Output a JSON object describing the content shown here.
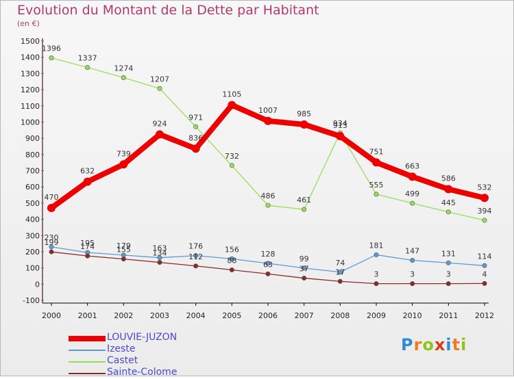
{
  "title": "Evolution du Montant de la Dette par Habitant",
  "subtitle": "(en €)",
  "brand": {
    "letters": [
      "P",
      "r",
      "o",
      "x",
      "i",
      "t",
      "i"
    ],
    "colors": [
      "#2e8bd6",
      "#f07c1c",
      "#8fc31f",
      "#d83b1f",
      "#2e8bd6",
      "#f07c1c",
      "#8fc31f"
    ]
  },
  "chart_data": {
    "type": "line",
    "x": [
      "2000",
      "2001",
      "2002",
      "2003",
      "2004",
      "2005",
      "2006",
      "2007",
      "2008",
      "2009",
      "2010",
      "2011",
      "2012"
    ],
    "ylim": [
      -100,
      1500
    ],
    "yticks": [
      -100,
      0,
      100,
      200,
      300,
      400,
      500,
      600,
      700,
      800,
      900,
      1000,
      1100,
      1200,
      1300,
      1400,
      1500
    ],
    "grid": false,
    "legend_position": "bottom-left",
    "series": [
      {
        "name": "LOUVIE-JUZON",
        "color": "#ee0000",
        "values": [
          470,
          632,
          739,
          924,
          836,
          1105,
          1007,
          985,
          913,
          751,
          663,
          586,
          532
        ],
        "labels": [
          "470",
          "632",
          "739",
          "924",
          "836",
          "1105",
          "1007",
          "985",
          "913",
          "751",
          "663",
          "586",
          "532"
        ]
      },
      {
        "name": "Izeste",
        "color": "#5b9bd5",
        "values": [
          230,
          195,
          179,
          163,
          176,
          156,
          128,
          99,
          74,
          181,
          147,
          131,
          114
        ],
        "labels": [
          "230",
          "195",
          "179",
          "163",
          "176",
          "156",
          "128",
          "99",
          "74",
          "181",
          "147",
          "131",
          "114"
        ]
      },
      {
        "name": "Castet",
        "color": "#99dd55",
        "values": [
          1396,
          1337,
          1274,
          1207,
          971,
          732,
          486,
          461,
          934,
          555,
          499,
          445,
          394
        ],
        "labels": [
          "1396",
          "1337",
          "1274",
          "1207",
          "971",
          "732",
          "486",
          "461",
          "934",
          "555",
          "499",
          "445",
          "394"
        ]
      },
      {
        "name": "Sainte-Colome",
        "color": "#8b2a2a",
        "values": [
          199,
          174,
          155,
          134,
          112,
          88,
          63,
          37,
          17,
          3,
          3,
          3,
          4
        ],
        "labels": [
          "199",
          "174",
          "155",
          "134",
          "112",
          "88",
          "63",
          "37",
          "17",
          "3",
          "3",
          "3",
          "4"
        ]
      }
    ]
  }
}
